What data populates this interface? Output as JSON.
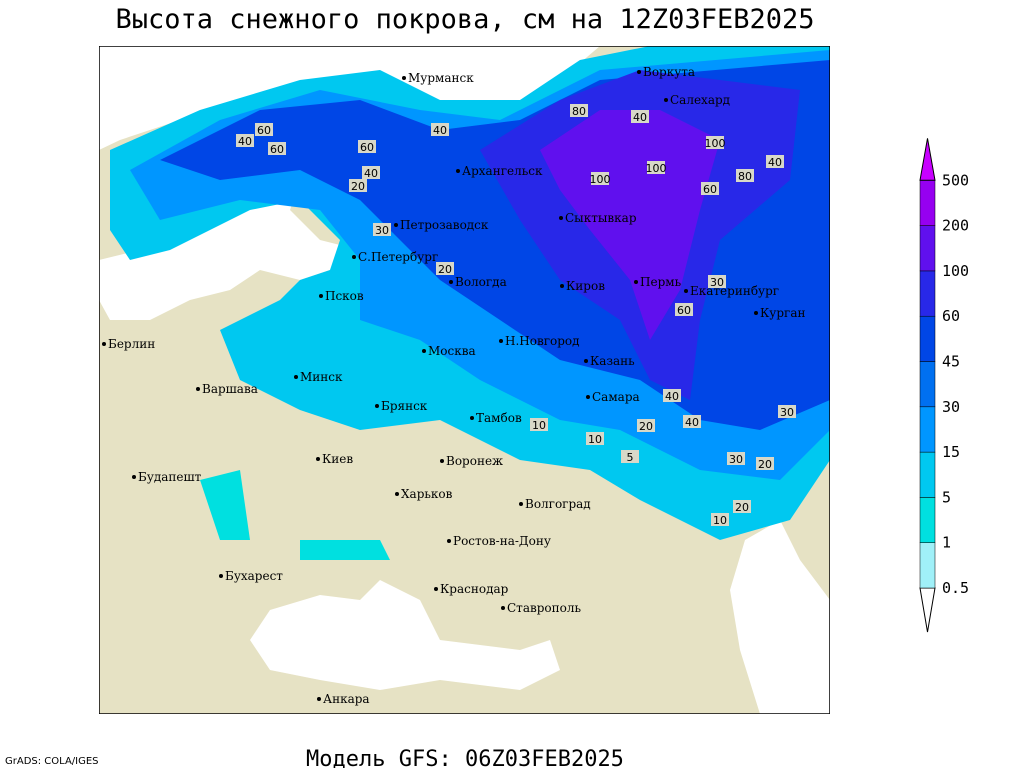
{
  "header": {
    "title": "Высота снежного покрова, см на 12Z03FEB2025"
  },
  "footer": {
    "model": "Модель GFS: 06Z03FEB2025",
    "credit": "GrADS: COLA/IGES"
  },
  "legend": {
    "levels": [
      0.5,
      1,
      5,
      15,
      30,
      45,
      60,
      100,
      200,
      500
    ],
    "colors": [
      "#a0f0f8",
      "#00e0e0",
      "#00c8f0",
      "#0096ff",
      "#0070f0",
      "#0046e6",
      "#2828e8",
      "#6010ee",
      "#9600f0",
      "#c800ff"
    ],
    "below_color": "#ffffff"
  },
  "cities": [
    "Мурманск",
    "Воркута",
    "Салехард",
    "Архангельск",
    "Сыктывкар",
    "Петрозаводск",
    "С.Петербург",
    "Вологда",
    "Киров",
    "Пермь",
    "Екатеринбург",
    "Курган",
    "Псков",
    "Н.Новгород",
    "Москва",
    "Казань",
    "Минск",
    "Берлин",
    "Варшава",
    "Самара",
    "Брянск",
    "Тамбов",
    "Киев",
    "Воронеж",
    "Будапешт",
    "Харьков",
    "Волгоград",
    "Ростов-на-Дону",
    "Бухарест",
    "Краснодар",
    "Ставрополь",
    "Анкара"
  ],
  "contour_labels": [
    40,
    60,
    60,
    40,
    60,
    20,
    40,
    80,
    100,
    100,
    80,
    60,
    40,
    40,
    30,
    20,
    30,
    10,
    5,
    10,
    20,
    30,
    20,
    40,
    10,
    20,
    40,
    30,
    60,
    100
  ]
}
